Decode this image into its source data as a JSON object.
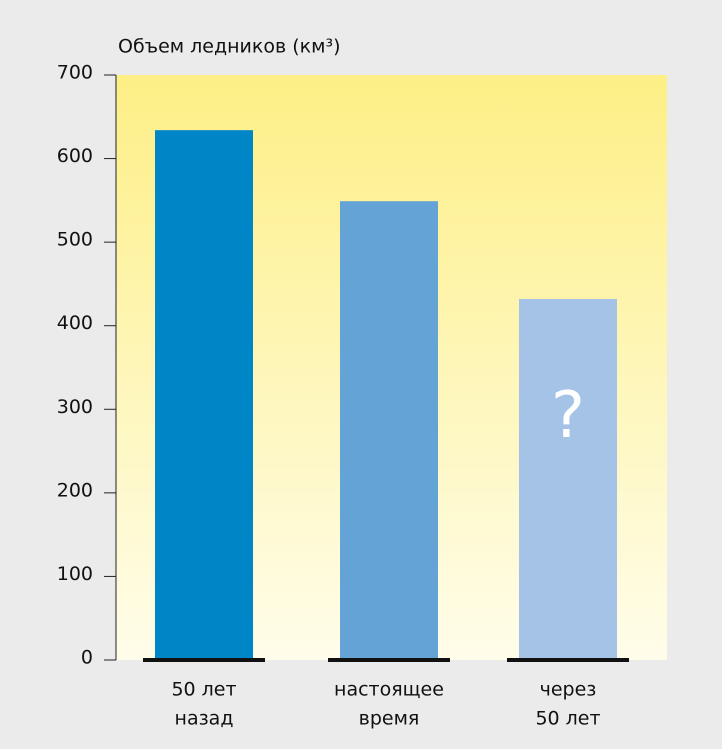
{
  "chart_data": {
    "type": "bar",
    "title": "Объем ледников (км³)",
    "categories": [
      [
        "50 лет",
        "назад"
      ],
      [
        "настоящее",
        "время"
      ],
      [
        "через",
        "50 лет"
      ]
    ],
    "values": [
      634,
      549,
      432
    ],
    "colors": [
      "#0085c7",
      "#64a3d5",
      "#a5c3e6"
    ],
    "annotations": [
      {
        "category": 2,
        "text": "?"
      }
    ],
    "ylim": [
      0,
      700
    ],
    "yticks": [
      0,
      100,
      200,
      300,
      400,
      500,
      600,
      700
    ]
  }
}
